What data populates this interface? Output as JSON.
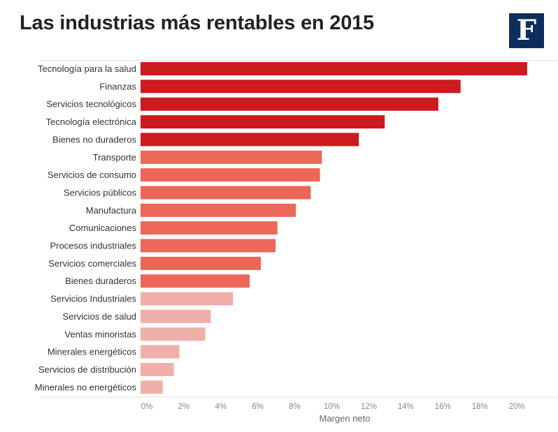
{
  "header": {
    "title": "Las industrias más rentables en 2015",
    "logo_text": "F",
    "logo_color": "#0d2d5c"
  },
  "chart_data": {
    "type": "bar",
    "orientation": "horizontal",
    "title": "Las industrias más rentables en 2015",
    "xlabel": "Margen neto",
    "ylabel": "",
    "xlim": [
      0,
      22
    ],
    "ticks": [
      0,
      2,
      4,
      6,
      8,
      10,
      12,
      14,
      16,
      18,
      20
    ],
    "tick_labels": [
      "0%",
      "2%",
      "4%",
      "6%",
      "8%",
      "10%",
      "12%",
      "14%",
      "16%",
      "18%",
      "20%"
    ],
    "grid": false,
    "categories": [
      "Tecnología para la salud",
      "Finanzas",
      "Servicios tecnológicos",
      "Tecnología electrónica",
      "Bienes no duraderos",
      "Transporte",
      "Servicios de consumo",
      "Servicios públicos",
      "Manufactura",
      "Comunicaciones",
      "Procesos industriales",
      "Servicios comerciales",
      "Bienes duraderos",
      "Servicios Industriales",
      "Servicios de salud",
      "Ventas minoristas",
      "Minerales energéticos",
      "Servicios de distribución",
      "Minerales no energéticos"
    ],
    "values": [
      20.9,
      17.3,
      16.1,
      13.2,
      11.8,
      9.8,
      9.7,
      9.2,
      8.4,
      7.4,
      7.3,
      6.5,
      5.9,
      5.0,
      3.8,
      3.5,
      2.1,
      1.8,
      1.2
    ],
    "color_groups": [
      0,
      0,
      0,
      0,
      0,
      1,
      1,
      1,
      1,
      1,
      1,
      1,
      1,
      2,
      2,
      2,
      2,
      2,
      2
    ],
    "colors": [
      "#cc1a1f",
      "#ec6757",
      "#f0b0aa"
    ]
  }
}
